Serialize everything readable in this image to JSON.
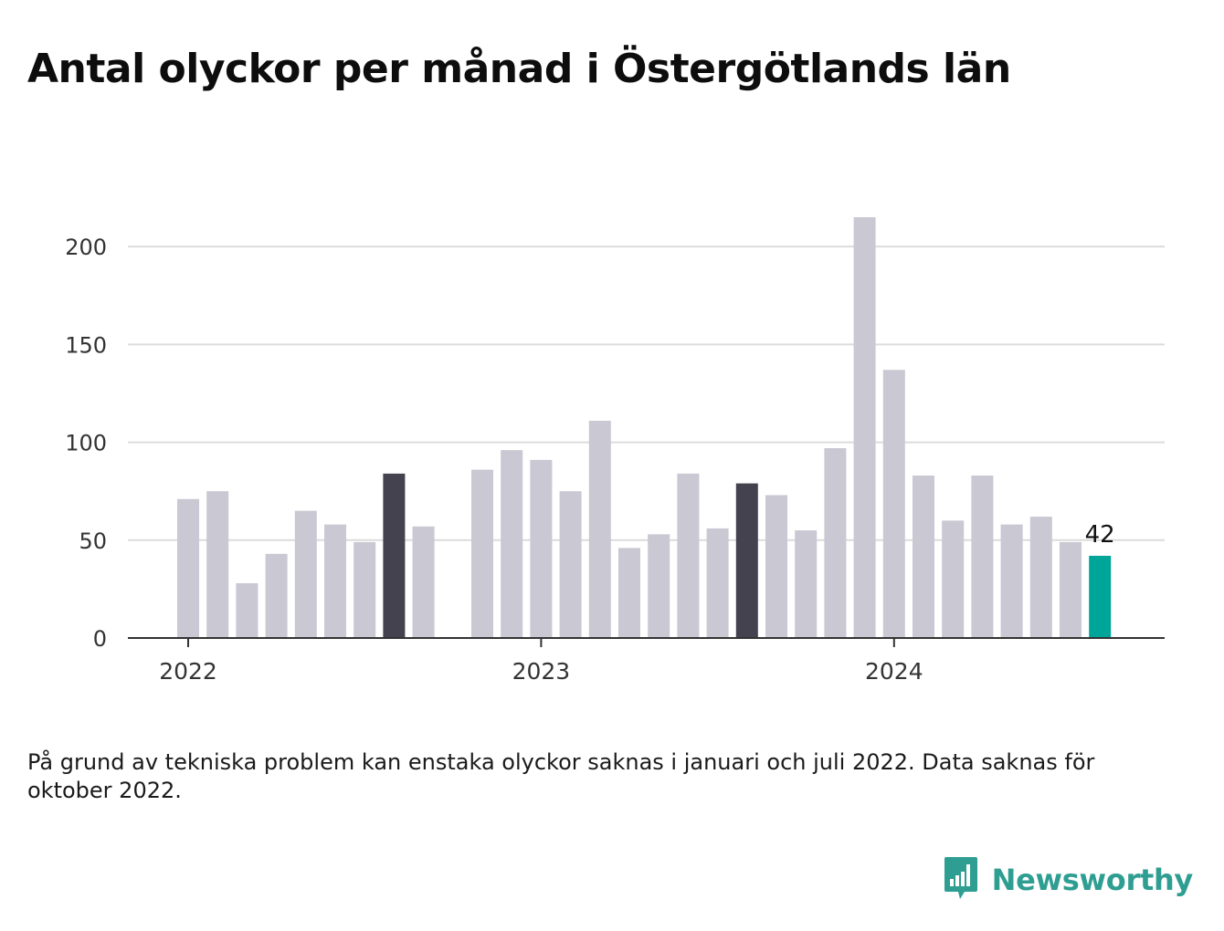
{
  "title": "Antal olyckor per månad i Östergötlands län",
  "note": "På grund av tekniska problem kan enstaka olyckor saknas i januari och juli 2022. Data saknas för oktober 2022.",
  "brand": {
    "name": "Newsworthy",
    "logo_icon": "newsworthy-chart-bubble-icon"
  },
  "colors": {
    "bar": "#c9c8d3",
    "highlight": "#43424e",
    "latest": "#00a59a",
    "grid": "#dcdcdc",
    "axis": "#333333",
    "brand": "#2f9e92"
  },
  "chart_data": {
    "type": "bar",
    "title": "Antal olyckor per månad i Östergötlands län",
    "xlabel": "",
    "ylabel": "",
    "ylim": [
      0,
      215
    ],
    "yticks": [
      0,
      50,
      100,
      150,
      200
    ],
    "xticks": [
      {
        "label": "2022",
        "month": "2022-01"
      },
      {
        "label": "2023",
        "month": "2023-01"
      },
      {
        "label": "2024",
        "month": "2024-01"
      }
    ],
    "grid": true,
    "categories": [
      "2022-01",
      "2022-02",
      "2022-03",
      "2022-04",
      "2022-05",
      "2022-06",
      "2022-07",
      "2022-08",
      "2022-09",
      "2022-10",
      "2022-11",
      "2022-12",
      "2023-01",
      "2023-02",
      "2023-03",
      "2023-04",
      "2023-05",
      "2023-06",
      "2023-07",
      "2023-08",
      "2023-09",
      "2023-10",
      "2023-11",
      "2023-12",
      "2024-01",
      "2024-02",
      "2024-03",
      "2024-04",
      "2024-05",
      "2024-06",
      "2024-07",
      "2024-08"
    ],
    "values": [
      71,
      75,
      28,
      43,
      65,
      58,
      49,
      84,
      57,
      null,
      86,
      96,
      91,
      75,
      111,
      46,
      53,
      84,
      56,
      79,
      73,
      55,
      97,
      215,
      137,
      83,
      60,
      83,
      58,
      62,
      49,
      42
    ],
    "highlighted": [
      "2022-08",
      "2023-08"
    ],
    "latest": "2024-08",
    "data_labels": [
      {
        "month": "2024-08",
        "text": "42"
      }
    ]
  }
}
